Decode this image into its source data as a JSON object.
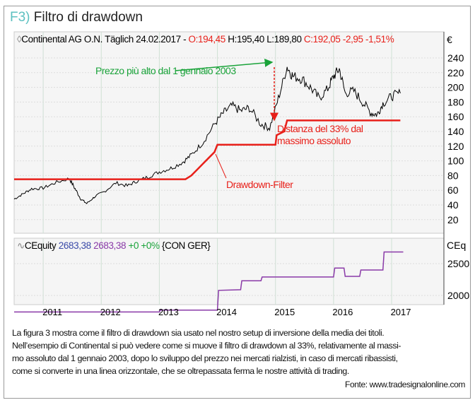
{
  "figure": {
    "label": "F3)",
    "title": "Filtro di drawdown"
  },
  "chart_data": [
    {
      "type": "line",
      "panel": "price",
      "header": {
        "symbol_icon": "diamond-icon",
        "instrument": "Continental AG O.N. Täglich 24.02.2017 -",
        "open": "O:194,45",
        "high": "H:195,40",
        "low": "L:189,80",
        "close": "C:192,05 -2,95 -1,51%"
      },
      "unit": "€",
      "y_ticks": [
        240,
        220,
        200,
        180,
        160,
        140,
        120,
        100,
        80,
        60,
        40,
        20
      ],
      "ylim": [
        10,
        250
      ],
      "x_ticks": [
        "2011",
        "2012",
        "2013",
        "2014",
        "2015",
        "2016",
        "2017"
      ],
      "xlim": [
        2010.5,
        2017.9
      ],
      "grid": true,
      "series": [
        {
          "key": "price",
          "color": "#000000",
          "x": [
            2010.5,
            2010.65,
            2010.8,
            2011.0,
            2011.2,
            2011.45,
            2011.55,
            2011.65,
            2011.75,
            2011.9,
            2012.05,
            2012.25,
            2012.45,
            2012.6,
            2012.8,
            2013.0,
            2013.2,
            2013.4,
            2013.55,
            2013.75,
            2013.95,
            2014.1,
            2014.25,
            2014.4,
            2014.55,
            2014.75,
            2014.9,
            2015.05,
            2015.2,
            2015.3,
            2015.45,
            2015.6,
            2015.75,
            2015.9,
            2016.0,
            2016.1,
            2016.2,
            2016.35,
            2016.5,
            2016.65,
            2016.75,
            2016.85,
            2017.0,
            2017.15
          ],
          "y": [
            48,
            55,
            62,
            63,
            70,
            76,
            62,
            48,
            42,
            52,
            58,
            70,
            66,
            72,
            78,
            85,
            90,
            98,
            108,
            125,
            150,
            165,
            175,
            168,
            172,
            150,
            145,
            185,
            228,
            215,
            212,
            200,
            185,
            198,
            215,
            225,
            192,
            195,
            180,
            165,
            163,
            178,
            188,
            192
          ]
        },
        {
          "key": "drawdown_filter",
          "name": "Drawdown-Filter",
          "color": "#e8201a",
          "x": [
            2010.5,
            2013.45,
            2013.55,
            2013.65,
            2013.75,
            2013.85,
            2013.95,
            2014.0,
            2015.0,
            2015.02,
            2015.15,
            2015.2,
            2017.15
          ],
          "y": [
            75,
            75,
            80,
            88,
            96,
            104,
            112,
            122,
            122,
            135,
            140,
            155,
            155
          ]
        }
      ],
      "annotations": [
        {
          "text": "Prezzo più alto dal 1 gennaio 2003",
          "color": "#1aa33a"
        },
        {
          "text": "Distanza del 33% dal",
          "text2": "massimo assoluto",
          "color": "#e8201a"
        },
        {
          "text": "Drawdown-Filter",
          "color": "#e8201a"
        }
      ]
    },
    {
      "type": "line",
      "panel": "equity",
      "header": {
        "name": "CEquity",
        "v1": "2683,38",
        "v2": "2683,38",
        "change": "+0 +0%",
        "symbol": "{CON GER}"
      },
      "unit": "CEq",
      "y_ticks": [
        2500,
        2000
      ],
      "ylim": [
        1600,
        2850
      ],
      "series": [
        {
          "key": "equity",
          "color": "#8a3aa8",
          "x": [
            2010.5,
            2013.0,
            2013.02,
            2014.0,
            2014.02,
            2014.4,
            2014.42,
            2014.75,
            2014.77,
            2016.0,
            2016.02,
            2016.18,
            2016.2,
            2016.45,
            2016.47,
            2016.85,
            2016.87,
            2017.2
          ],
          "y": [
            1740,
            1740,
            1770,
            1770,
            2080,
            2090,
            2230,
            2230,
            2290,
            2290,
            2430,
            2430,
            2300,
            2300,
            2400,
            2400,
            2683,
            2683
          ]
        }
      ]
    }
  ],
  "caption": {
    "lines": [
      "La figura 3 mostra come il filtro di drawdown sia usato nel nostro setup di inversione della media dei titoli.",
      "Nell’esempio di Continental si può vedere come si muove il filtro di drawdown al 33%, relativamente al massi-",
      "mo assoluto dal 1 gennaio 2003, dopo lo sviluppo del prezzo nei mercati rialzisti, in caso di mercati ribassisti,",
      "come si converte in una linea orizzontale, che se oltrepassata ferma le nostre attività di trading."
    ],
    "source": "Fonte: www.tradesignalonline.com"
  }
}
